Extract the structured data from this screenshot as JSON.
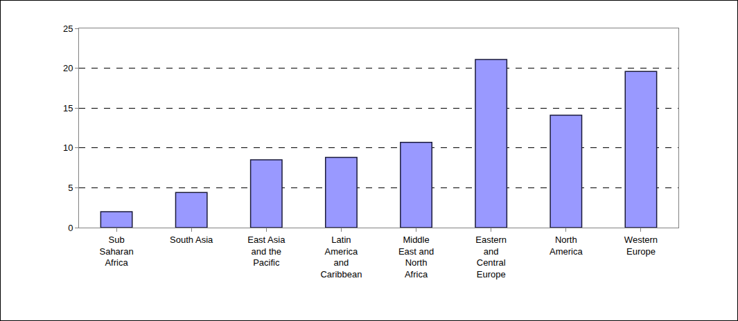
{
  "chart_data": {
    "type": "bar",
    "categories": [
      "Sub Saharan Africa",
      "South Asia",
      "East Asia and the Pacific",
      "Latin America and Caribbean",
      "Middle East and North Africa",
      "Eastern and Central Europe",
      "North America",
      "Western Europe"
    ],
    "values": [
      2.0,
      4.4,
      8.5,
      8.8,
      10.7,
      21.1,
      14.1,
      19.6
    ],
    "color": "#9999ff",
    "ylim": [
      0,
      25
    ],
    "yticks": [
      0,
      5,
      10,
      15,
      20,
      25
    ],
    "grid": true
  }
}
